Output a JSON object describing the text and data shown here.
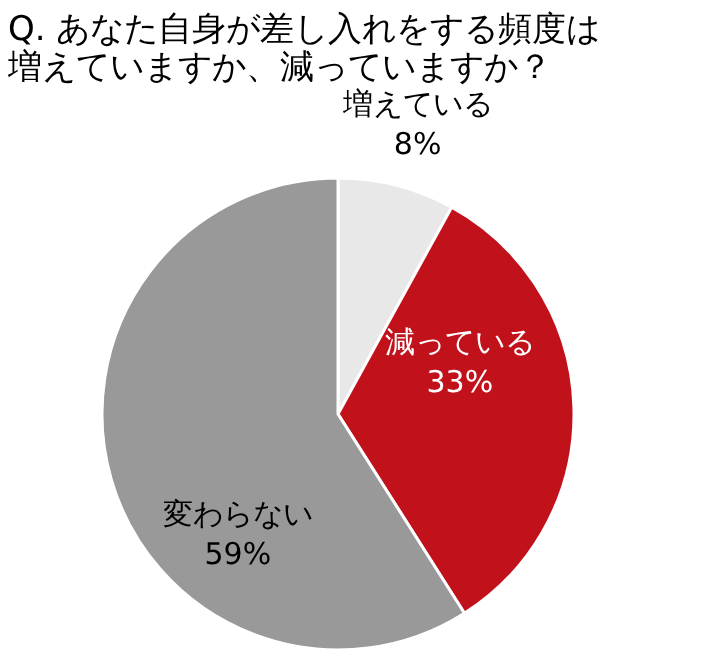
{
  "chart_data": {
    "type": "pie",
    "title": [
      "Q. あなた自身が差し入れをする頻度は",
      "増えていますか、減っていますか？"
    ],
    "categories": [
      "増えている",
      "減っている",
      "変わらない"
    ],
    "values": [
      8,
      33,
      59
    ],
    "colors": [
      "#e8e8e8",
      "#c1121c",
      "#999999"
    ],
    "value_labels": [
      "8%",
      "33%",
      "59%"
    ]
  }
}
